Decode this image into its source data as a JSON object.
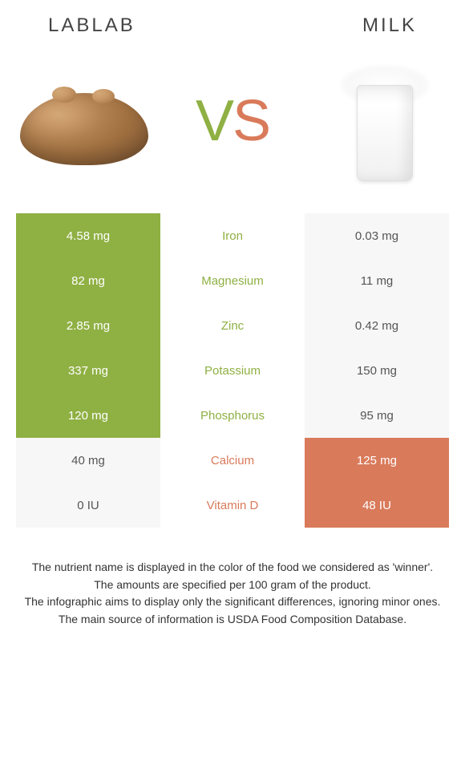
{
  "header": {
    "left_title": "LABLAB",
    "right_title": "MILK"
  },
  "vs": {
    "v": "V",
    "s": "S",
    "v_color": "#8fb043",
    "s_color": "#d97a5a"
  },
  "colors": {
    "left_win_bg": "#8fb043",
    "right_win_bg": "#d97a5a",
    "loser_bg": "#f7f7f7",
    "loser_text": "#555555",
    "win_text": "#ffffff"
  },
  "rows": [
    {
      "nutrient": "Iron",
      "left": "4.58 mg",
      "right": "0.03 mg",
      "winner": "left"
    },
    {
      "nutrient": "Magnesium",
      "left": "82 mg",
      "right": "11 mg",
      "winner": "left"
    },
    {
      "nutrient": "Zinc",
      "left": "2.85 mg",
      "right": "0.42 mg",
      "winner": "left"
    },
    {
      "nutrient": "Potassium",
      "left": "337 mg",
      "right": "150 mg",
      "winner": "left"
    },
    {
      "nutrient": "Phosphorus",
      "left": "120 mg",
      "right": "95 mg",
      "winner": "left"
    },
    {
      "nutrient": "Calcium",
      "left": "40 mg",
      "right": "125 mg",
      "winner": "right"
    },
    {
      "nutrient": "Vitamin D",
      "left": "0 IU",
      "right": "48 IU",
      "winner": "right"
    }
  ],
  "footer": {
    "line1": "The nutrient name is displayed in the color of the food we considered as 'winner'.",
    "line2": "The amounts are specified per 100 gram of the product.",
    "line3": "The infographic aims to display only the significant differences, ignoring minor ones.",
    "line4": "The main source of information is USDA Food Composition Database."
  }
}
